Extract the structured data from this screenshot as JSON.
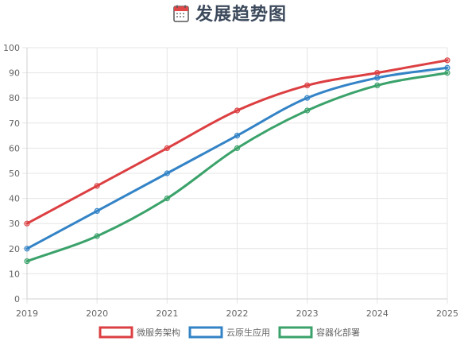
{
  "page": {
    "title": "发展趋势图",
    "title_icon": "calendar-icon"
  },
  "chart_data": {
    "type": "line",
    "title": "发展趋势图",
    "xlabel": "",
    "ylabel": "",
    "x": [
      "2019",
      "2020",
      "2021",
      "2022",
      "2023",
      "2024",
      "2025"
    ],
    "ylim": [
      0,
      100
    ],
    "yticks": [
      0,
      10,
      20,
      30,
      40,
      50,
      60,
      70,
      80,
      90,
      100
    ],
    "grid": true,
    "legend_position": "bottom",
    "series": [
      {
        "name": "微服务架构",
        "color": "#dc3f42",
        "values": [
          30,
          45,
          60,
          75,
          85,
          90,
          95
        ]
      },
      {
        "name": "云原生应用",
        "color": "#3383c6",
        "values": [
          20,
          35,
          50,
          65,
          80,
          88,
          92
        ]
      },
      {
        "name": "容器化部署",
        "color": "#3aa26a",
        "values": [
          15,
          25,
          40,
          60,
          75,
          85,
          90
        ]
      }
    ]
  }
}
